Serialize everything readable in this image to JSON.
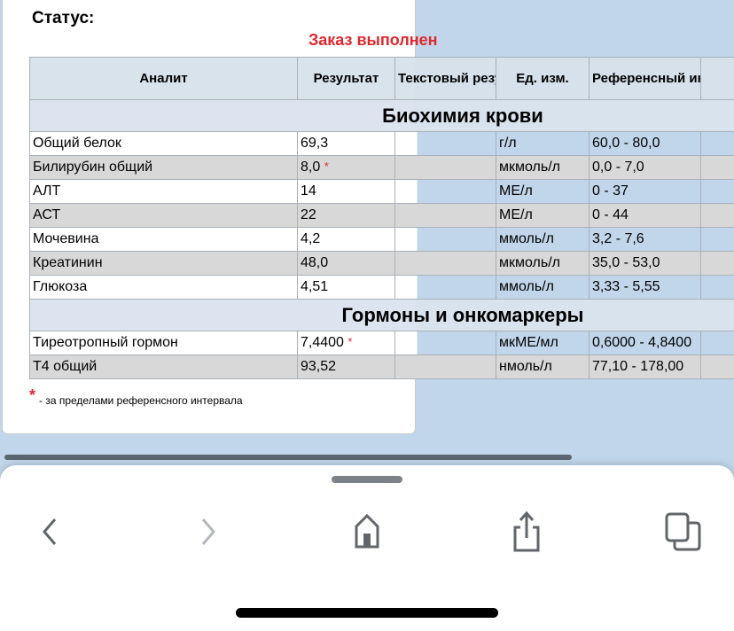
{
  "status_label": "Статус:",
  "order_status": "Заказ выполнен",
  "colors": {
    "order_status": "#e0282e",
    "background": "#c1d6ea",
    "shaded_row": "#d8d8d8"
  },
  "table": {
    "headers": [
      "Аналит",
      "Результат",
      "Текстовый результат",
      "Ед. изм.",
      "Референсный интервал",
      ""
    ],
    "sections": [
      {
        "title": "Биохимия крови",
        "rows": [
          {
            "analyte": "Общий белок",
            "result": "69,3",
            "flag": "",
            "text_result": "",
            "unit": "г/л",
            "ref": "60,0 - 80,0"
          },
          {
            "analyte": "Билирубин общий",
            "result": "8,0",
            "flag": "*",
            "text_result": "",
            "unit": "мкмоль/л",
            "ref": "0,0 - 7,0"
          },
          {
            "analyte": "АЛТ",
            "result": "14",
            "flag": "",
            "text_result": "",
            "unit": "МЕ/л",
            "ref": "0 - 37"
          },
          {
            "analyte": "АСТ",
            "result": "22",
            "flag": "",
            "text_result": "",
            "unit": "МЕ/л",
            "ref": "0 - 44"
          },
          {
            "analyte": "Мочевина",
            "result": "4,2",
            "flag": "",
            "text_result": "",
            "unit": "ммоль/л",
            "ref": "3,2 - 7,6"
          },
          {
            "analyte": "Креатинин",
            "result": "48,0",
            "flag": "",
            "text_result": "",
            "unit": "мкмоль/л",
            "ref": "35,0 - 53,0"
          },
          {
            "analyte": "Глюкоза",
            "result": "4,51",
            "flag": "",
            "text_result": "",
            "unit": "ммоль/л",
            "ref": "3,33 - 5,55"
          }
        ]
      },
      {
        "title": "Гормоны и онкомаркеры",
        "rows": [
          {
            "analyte": "Тиреотропный гормон",
            "result": "7,4400",
            "flag": "*",
            "text_result": "",
            "unit": "мкМЕ/мл",
            "ref": "0,6000 - 4,8400"
          },
          {
            "analyte": "Т4 общий",
            "result": "93,52",
            "flag": "",
            "text_result": "",
            "unit": "нмоль/л",
            "ref": "77,10 - 178,00"
          }
        ]
      }
    ]
  },
  "footnote": {
    "mark": "*",
    "text": "- за пределами референсного интервала"
  },
  "toolbar": {
    "icons": [
      "back-icon",
      "forward-icon",
      "home-icon",
      "share-icon",
      "tabs-icon"
    ]
  }
}
